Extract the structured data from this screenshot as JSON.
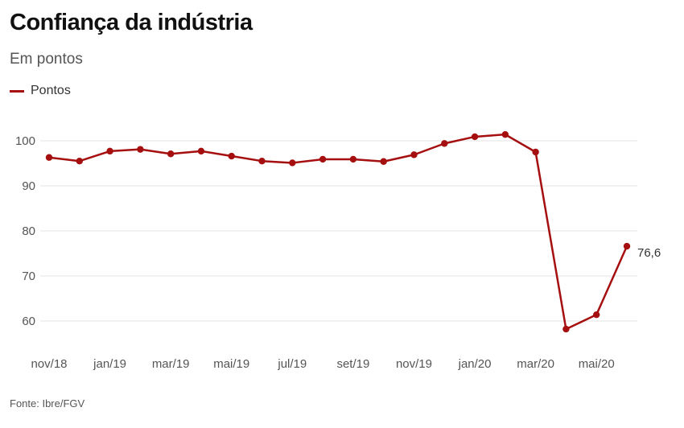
{
  "header": {
    "title": "Confiança da indústria",
    "subtitle": "Em pontos"
  },
  "footer": {
    "source": "Fonte: Ibre/FGV"
  },
  "colors": {
    "series": "#a60f0f",
    "grid": "#e3e3e3"
  },
  "chart_data": {
    "type": "line",
    "title": "Confiança da indústria",
    "subtitle": "Em pontos",
    "xlabel": "",
    "ylabel": "",
    "ylim": [
      55,
      105
    ],
    "yticks": [
      60,
      70,
      80,
      90,
      100
    ],
    "grid": true,
    "legend_position": "top-left",
    "x": [
      "nov/18",
      "dez/18",
      "jan/19",
      "fev/19",
      "mar/19",
      "abr/19",
      "mai/19",
      "jun/19",
      "jul/19",
      "ago/19",
      "set/19",
      "out/19",
      "nov/19",
      "dez/19",
      "jan/20",
      "fev/20",
      "mar/20",
      "abr/20",
      "mai/20",
      "jun/20"
    ],
    "x_tick_labels": [
      "nov/18",
      "jan/19",
      "mar/19",
      "mai/19",
      "jul/19",
      "set/19",
      "nov/19",
      "jan/20",
      "mar/20",
      "mai/20"
    ],
    "x_tick_indices": [
      0,
      2,
      4,
      6,
      8,
      10,
      12,
      14,
      16,
      18
    ],
    "series": [
      {
        "name": "Pontos",
        "values": [
          96.3,
          95.5,
          97.7,
          98.1,
          97.1,
          97.7,
          96.6,
          95.5,
          95.1,
          95.9,
          95.9,
          95.4,
          96.9,
          99.4,
          100.9,
          101.4,
          97.5,
          58.2,
          61.4,
          76.6
        ]
      }
    ],
    "annotations": [
      {
        "index": 19,
        "text": "76,6"
      }
    ]
  }
}
